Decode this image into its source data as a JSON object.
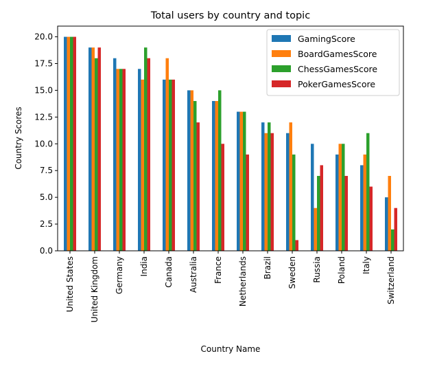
{
  "chart_data": {
    "type": "bar",
    "title": "Total users by country and topic",
    "xlabel": "Country Name",
    "ylabel": "Country Scores",
    "ylim": [
      0,
      21
    ],
    "yticks": [
      "0.0",
      "2.5",
      "5.0",
      "7.5",
      "10.0",
      "12.5",
      "15.0",
      "17.5",
      "20.0"
    ],
    "grid": false,
    "legend_position": "top-right",
    "categories": [
      "United States",
      "United Kingdom",
      "Germany",
      "India",
      "Canada",
      "Australia",
      "France",
      "Netherlands",
      "Brazil",
      "Sweden",
      "Russia",
      "Poland",
      "Italy",
      "Switzerland"
    ],
    "series": [
      {
        "name": "GamingScore",
        "color": "#1f77b4",
        "values": [
          20,
          19,
          18,
          17,
          16,
          15,
          14,
          13,
          12,
          11,
          10,
          9,
          8,
          5
        ]
      },
      {
        "name": "BoardGamesScore",
        "color": "#ff7f0e",
        "values": [
          20,
          19,
          17,
          16,
          18,
          15,
          14,
          13,
          11,
          12,
          4,
          10,
          9,
          7
        ]
      },
      {
        "name": "ChessGamesScore",
        "color": "#2ca02c",
        "values": [
          20,
          18,
          17,
          19,
          16,
          14,
          15,
          13,
          12,
          9,
          7,
          10,
          11,
          2
        ]
      },
      {
        "name": "PokerGamesScore",
        "color": "#d62728",
        "values": [
          20,
          19,
          17,
          18,
          16,
          12,
          10,
          9,
          11,
          1,
          8,
          7,
          6,
          4
        ]
      }
    ]
  }
}
